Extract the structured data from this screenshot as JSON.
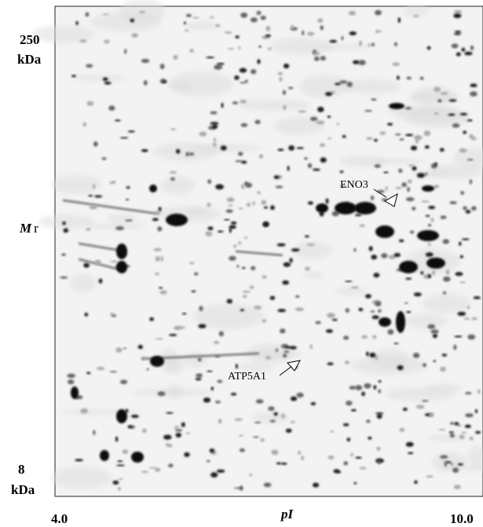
{
  "y_axis": {
    "top_value": "250",
    "top_unit": "kDa",
    "label_italic": "M",
    "label_suffix": "r",
    "bottom_value": "8",
    "bottom_unit": "kDa"
  },
  "x_axis": {
    "left_value": "4.0",
    "label": "pI",
    "right_value": "10.0"
  },
  "annotations": [
    "ENO3",
    "ATP5A1"
  ]
}
